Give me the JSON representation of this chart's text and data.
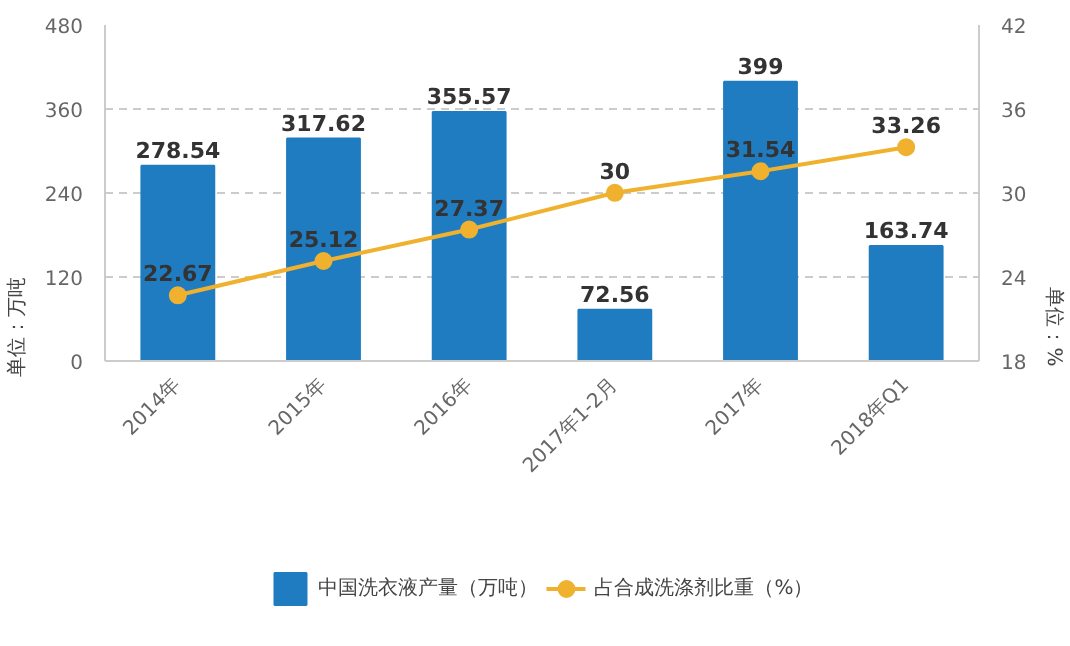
{
  "chart_data": {
    "type": "bar",
    "categories": [
      "2014年",
      "2015年",
      "2016年",
      "2017年1-2月",
      "2017年",
      "2018年Q1"
    ],
    "series": [
      {
        "name": "中国洗衣液产量（万吨）",
        "color": "#1f7cc1",
        "values": [
          278.54,
          317.62,
          355.57,
          72.56,
          399,
          163.74
        ]
      },
      {
        "name": "占合成洗涤剂比重（%）",
        "type": "line",
        "axis": "y2",
        "color": "#f0b12f",
        "values": [
          22.67,
          25.12,
          27.37,
          30,
          31.54,
          33.26
        ]
      }
    ],
    "ylabel": "单位：万吨",
    "y2label": "单位：%",
    "ylim": [
      0,
      480
    ],
    "yticks": [
      0,
      120,
      240,
      360,
      480
    ],
    "y2lim": [
      18,
      42
    ],
    "y2ticks": [
      18,
      24,
      30,
      36,
      42
    ],
    "data_labels": true,
    "grid": "y",
    "legend": "bottom",
    "marker": "circle",
    "line_style": "solid"
  }
}
